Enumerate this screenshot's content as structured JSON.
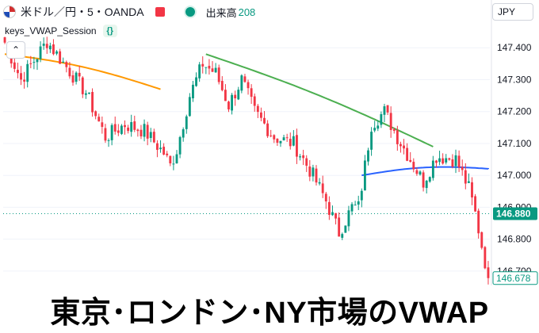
{
  "header": {
    "symbol_line": "米ドル／円・5・OANDA",
    "volume_label": "出来高",
    "volume_value": "208",
    "indicator_name": "keys_VWAP_Session",
    "indicator_badge": "{}",
    "currency_button": "JPY"
  },
  "caption": "東京･ロンドン･NY市場のVWAP",
  "colors": {
    "up": "#089981",
    "down": "#f23645",
    "vwap_tokyo": "#ff9800",
    "vwap_london": "#4caf50",
    "vwap_ny": "#2962ff",
    "hline": "#089981",
    "last_price": "#089981"
  },
  "chart_data": {
    "type": "candlestick",
    "y_axis": {
      "ticks": [
        147.4,
        147.3,
        147.2,
        147.1,
        147.0,
        146.9,
        146.8,
        146.7
      ],
      "tick_labels": [
        "147.400",
        "147.300",
        "147.200",
        "147.100",
        "147.000",
        "146.900",
        "146.800",
        "146.700"
      ],
      "range": [
        146.665,
        147.5
      ]
    },
    "bar_count": 150,
    "price_path": [
      [
        0,
        147.44
      ],
      [
        6,
        147.3
      ],
      [
        10,
        147.36
      ],
      [
        14,
        147.42
      ],
      [
        20,
        147.34
      ],
      [
        26,
        147.26
      ],
      [
        32,
        147.12
      ],
      [
        38,
        147.16
      ],
      [
        44,
        147.14
      ],
      [
        50,
        147.07
      ],
      [
        52,
        147.03
      ],
      [
        54,
        147.08
      ],
      [
        58,
        147.25
      ],
      [
        62,
        147.35
      ],
      [
        66,
        147.32
      ],
      [
        70,
        147.22
      ],
      [
        74,
        147.3
      ],
      [
        78,
        147.2
      ],
      [
        84,
        147.12
      ],
      [
        90,
        147.1
      ],
      [
        96,
        147.0
      ],
      [
        100,
        146.92
      ],
      [
        104,
        146.82
      ],
      [
        108,
        146.9
      ],
      [
        110,
        146.9
      ],
      [
        114,
        147.16
      ],
      [
        118,
        147.2
      ],
      [
        122,
        147.12
      ],
      [
        126,
        147.05
      ],
      [
        130,
        146.98
      ],
      [
        134,
        147.06
      ],
      [
        140,
        147.05
      ],
      [
        144,
        146.96
      ],
      [
        146,
        146.88
      ],
      [
        148,
        146.78
      ],
      [
        150,
        146.68
      ]
    ],
    "horizontal_line": 146.88,
    "last_price": 146.678,
    "last_price_label": "146.678",
    "hline_label": "146.880",
    "vwap_sessions": [
      {
        "color_key": "vwap_tokyo",
        "start_bar": 0,
        "end_bar": 48,
        "from": 147.38,
        "to": 147.27
      },
      {
        "color_key": "vwap_london",
        "start_bar": 62,
        "end_bar": 132,
        "from": 147.38,
        "to": 147.09
      },
      {
        "color_key": "vwap_ny",
        "start_bar": 110,
        "end_bar": 150,
        "from": 147.0,
        "to": 147.02
      }
    ]
  }
}
